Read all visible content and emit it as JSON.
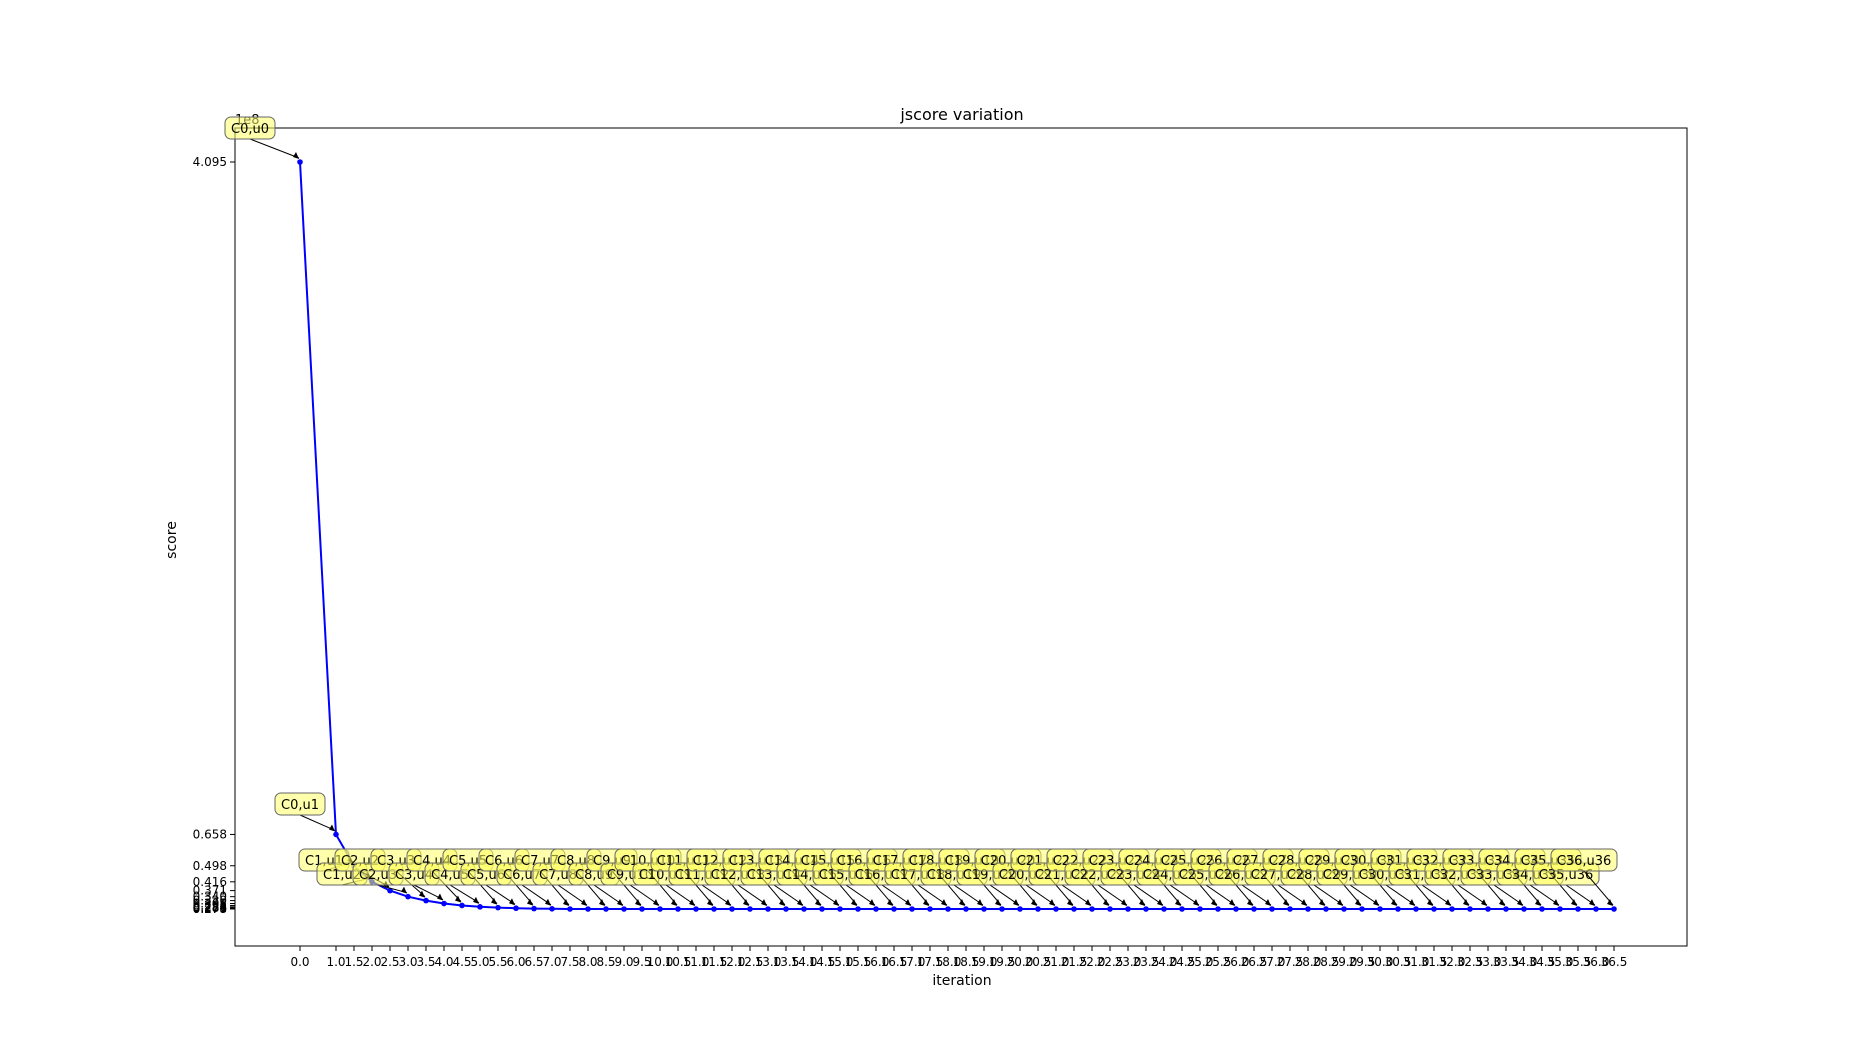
{
  "chart_data": {
    "type": "line",
    "title": "jscore variation",
    "xlabel": "iteration",
    "ylabel": "score",
    "offset_text": "1e8",
    "grid": false,
    "legend": null,
    "line_color": "#0000ff",
    "annotation_fill": "#ffff66",
    "x": [
      0.0,
      1.0,
      1.5,
      2.0,
      2.5,
      3.0,
      3.5,
      4.0,
      4.5,
      5.0,
      5.5,
      6.0,
      6.5,
      7.0,
      7.5,
      8.0,
      8.5,
      9.0,
      9.5,
      10.0,
      10.5,
      11.0,
      11.5,
      12.0,
      12.5,
      13.0,
      13.5,
      14.0,
      14.5,
      15.0,
      15.5,
      16.0,
      16.5,
      17.0,
      17.5,
      18.0,
      18.5,
      19.0,
      19.5,
      20.0,
      20.5,
      21.0,
      21.5,
      22.0,
      22.5,
      23.0,
      23.5,
      24.0,
      24.5,
      25.0,
      25.5,
      26.0,
      26.5,
      27.0,
      27.5,
      28.0,
      28.5,
      29.0,
      29.5,
      30.0,
      30.5,
      31.0,
      31.5,
      32.0,
      32.5,
      33.0,
      33.5,
      34.0,
      34.5,
      35.0,
      35.5,
      36.0,
      36.5
    ],
    "y": [
      4.095,
      0.658,
      0.498,
      0.416,
      0.371,
      0.34,
      0.32,
      0.305,
      0.295,
      0.288,
      0.284,
      0.281,
      0.279,
      0.278,
      0.277,
      0.277,
      0.277,
      0.277,
      0.277,
      0.277,
      0.277,
      0.277,
      0.277,
      0.277,
      0.277,
      0.277,
      0.277,
      0.277,
      0.277,
      0.277,
      0.277,
      0.277,
      0.277,
      0.277,
      0.277,
      0.277,
      0.277,
      0.277,
      0.277,
      0.277,
      0.277,
      0.277,
      0.277,
      0.277,
      0.277,
      0.277,
      0.277,
      0.277,
      0.277,
      0.277,
      0.277,
      0.277,
      0.277,
      0.277,
      0.277,
      0.277,
      0.277,
      0.277,
      0.277,
      0.277,
      0.277,
      0.277,
      0.277,
      0.277,
      0.277,
      0.277,
      0.277,
      0.277,
      0.277,
      0.277,
      0.277,
      0.277,
      0.277
    ],
    "labels": [
      "C0,u0",
      "C0,u1",
      "C1,u1",
      "C1,u2",
      "C2,u2",
      "C2,u3",
      "C3,u3",
      "C3,u4",
      "C4,u4",
      "C4,u5",
      "C5,u5",
      "C5,u6",
      "C6,u6",
      "C6,u7",
      "C7,u7",
      "C7,u8",
      "C8,u8",
      "C8,u9",
      "C9,u9",
      "C9,u10",
      "C10,u10",
      "C10,u11",
      "C11,u11",
      "C11,u12",
      "C12,u12",
      "C12,u13",
      "C13,u13",
      "C13,u14",
      "C14,u14",
      "C14,u15",
      "C15,u15",
      "C15,u16",
      "C16,u16",
      "C16,u17",
      "C17,u17",
      "C17,u18",
      "C18,u18",
      "C18,u19",
      "C19,u19",
      "C19,u20",
      "C20,u20",
      "C20,u21",
      "C21,u21",
      "C21,u22",
      "C22,u22",
      "C22,u23",
      "C23,u23",
      "C23,u24",
      "C24,u24",
      "C24,u25",
      "C25,u25",
      "C25,u26",
      "C26,u26",
      "C26,u27",
      "C27,u27",
      "C27,u28",
      "C28,u28",
      "C28,u29",
      "C29,u29",
      "C29,u30",
      "C30,u30",
      "C30,u31",
      "C31,u31",
      "C31,u32",
      "C32,u32",
      "C32,u33",
      "C33,u33",
      "C33,u34",
      "C34,u34",
      "C34,u35",
      "C35,u35",
      "C35,u36",
      "C36,u36"
    ],
    "x_ticks": [
      "0.0",
      "1.0",
      "1.5",
      "2.0",
      "2.5",
      "3.0",
      "3.5",
      "4.0",
      "4.5",
      "5.0",
      "5.5",
      "6.0",
      "6.5",
      "7.0",
      "7.5",
      "8.0",
      "8.5",
      "9.0",
      "9.5",
      "10.0",
      "10.5",
      "11.0",
      "11.5",
      "12.0",
      "12.5",
      "13.0",
      "13.5",
      "14.0",
      "14.5",
      "15.0",
      "15.5",
      "16.0",
      "16.5",
      "17.0",
      "17.5",
      "18.0",
      "18.5",
      "19.0",
      "19.5",
      "20.0",
      "20.5",
      "21.0",
      "21.5",
      "22.0",
      "22.5",
      "23.0",
      "23.5",
      "24.0",
      "24.5",
      "25.0",
      "25.5",
      "26.0",
      "26.5",
      "27.0",
      "27.5",
      "28.0",
      "28.5",
      "29.0",
      "29.5",
      "30.0",
      "30.5",
      "31.0",
      "31.5",
      "32.0",
      "32.5",
      "33.0",
      "33.5",
      "34.0",
      "34.5",
      "35.0",
      "35.5",
      "36.0",
      "36.5"
    ],
    "y_ticks": [
      "4.095",
      "0.658",
      "0.498",
      "0.416",
      "0.371",
      "0.340",
      "0.320",
      "0.305",
      "0.295",
      "0.288",
      "0.284",
      "0.281",
      "0.279",
      "0.278",
      "0.277"
    ]
  }
}
